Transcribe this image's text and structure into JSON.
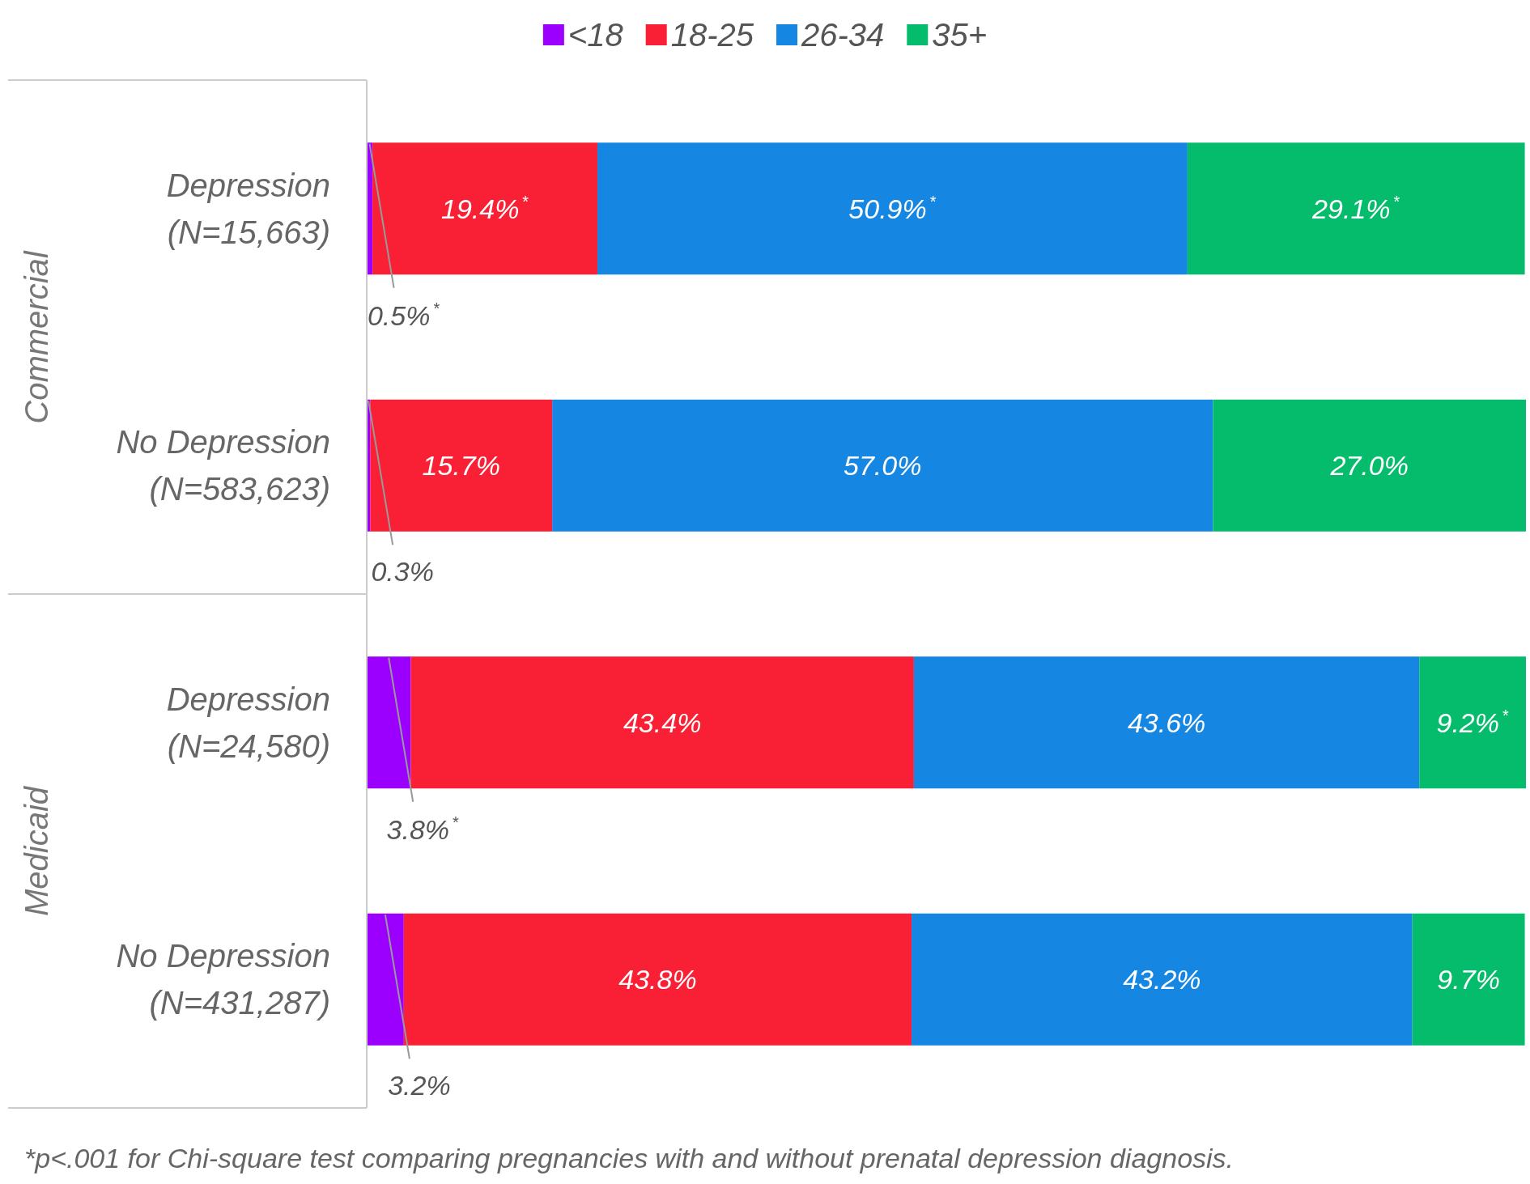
{
  "chart_data": {
    "type": "bar",
    "orientation": "horizontal",
    "stacked": true,
    "legend": "top",
    "categories": [
      "Depression\n(N=15,663)",
      "No Depression\n(N=583,623)",
      "Depression\n(N=24,580)",
      "No Depression\n(N=431,287)"
    ],
    "series": [
      {
        "name": "<18",
        "color": "#9b00ff",
        "values": [
          0.5,
          0.3,
          3.8,
          3.2
        ],
        "value_labels": [
          "0.5%$^{*}$",
          "0.3%",
          "3.8%$^{*}$",
          "3.2%"
        ]
      },
      {
        "name": "18-25",
        "color": "#f91f34",
        "values": [
          19.4,
          15.7,
          43.4,
          43.8
        ],
        "value_labels": [
          "19.4%$^{*}$",
          "15.7%",
          "43.4%",
          "43.8%"
        ]
      },
      {
        "name": "26-34",
        "color": "#1586e2",
        "values": [
          50.9,
          57.0,
          43.6,
          43.2
        ],
        "value_labels": [
          "50.9%$^{*}$",
          "57.0%",
          "43.6%",
          "43.2%"
        ]
      },
      {
        "name": "35+",
        "color": "#04bc6c",
        "values": [
          29.1,
          27.0,
          9.2,
          9.7
        ],
        "value_labels": [
          "29.1%$^{*}$",
          "27.0%",
          "9.2%$^{*}$",
          "9.7%"
        ]
      }
    ],
    "annotations": [
      "Commercial",
      "Medicaid",
      "*p<.001 for Chi-square test comparing pregnancies with and without prenatal depression diagnosis."
    ]
  }
}
